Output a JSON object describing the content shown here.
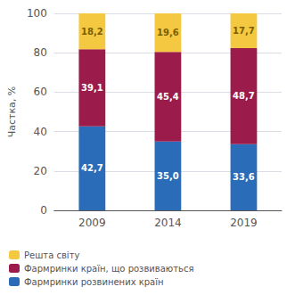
{
  "chart_data": {
    "type": "bar",
    "stacked": true,
    "data_labels": true,
    "categories": [
      "2009",
      "2014",
      "2019"
    ],
    "series": [
      {
        "name": "Фармринки розвинених країн",
        "color": "#2b6cb8",
        "values": [
          42.7,
          35.0,
          33.6
        ],
        "value_labels": [
          "42,7",
          "35,0",
          "33,6"
        ]
      },
      {
        "name": "Фармринки країн, що розвиваються",
        "color": "#9b1b4b",
        "values": [
          39.1,
          45.4,
          48.7
        ],
        "value_labels": [
          "39,1",
          "45,4",
          "48,7"
        ]
      },
      {
        "name": "Решта світу",
        "color": "#f5c842",
        "values": [
          18.2,
          19.6,
          17.7
        ],
        "value_labels": [
          "18,2",
          "19,6",
          "17,7"
        ]
      }
    ],
    "ylabel": "Частка, %",
    "ylim": [
      0,
      100
    ],
    "yticks": [
      0,
      20,
      40,
      60,
      80,
      100
    ],
    "grid": true,
    "legend": "lower left"
  }
}
